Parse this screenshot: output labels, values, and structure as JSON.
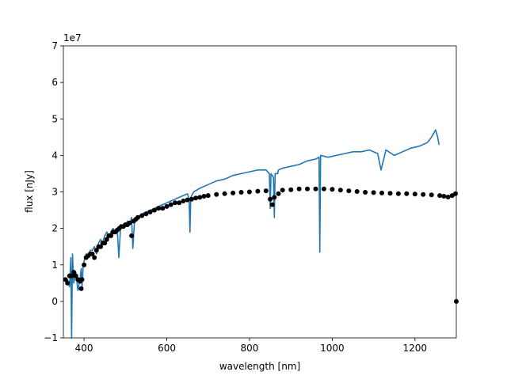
{
  "chart_data": {
    "type": "line",
    "title": "",
    "xlabel": "wavelength [nm]",
    "ylabel": "flux [nJy]",
    "y_offset_label": "1e7",
    "xlim": [
      350,
      1300
    ],
    "ylim": [
      -1,
      7
    ],
    "y_unit_multiplier": 10000000,
    "grid": false,
    "legend": "none",
    "x_ticks": [
      400,
      600,
      800,
      1000,
      1200
    ],
    "x_tick_labels": [
      "400",
      "600",
      "800",
      "1000",
      "1200"
    ],
    "y_ticks": [
      -1,
      0,
      1,
      2,
      3,
      4,
      5,
      6,
      7
    ],
    "y_tick_labels": [
      "−1",
      "0",
      "1",
      "2",
      "3",
      "4",
      "5",
      "6",
      "7"
    ],
    "series": [
      {
        "style": "line",
        "color": "#1f77b4",
        "points": [
          [
            360,
            0.6
          ],
          [
            365,
            0.4
          ],
          [
            368,
            1.2
          ],
          [
            370,
            -1.0
          ],
          [
            372,
            1.3
          ],
          [
            375,
            0.5
          ],
          [
            380,
            0.8
          ],
          [
            385,
            0.3
          ],
          [
            390,
            0.6
          ],
          [
            393,
            0.9
          ],
          [
            395,
            0.4
          ],
          [
            398,
            1.0
          ],
          [
            400,
            1.1
          ],
          [
            405,
            1.3
          ],
          [
            410,
            1.2
          ],
          [
            415,
            1.4
          ],
          [
            420,
            1.4
          ],
          [
            425,
            1.5
          ],
          [
            430,
            1.3
          ],
          [
            435,
            1.6
          ],
          [
            440,
            1.7
          ],
          [
            445,
            1.6
          ],
          [
            450,
            1.8
          ],
          [
            455,
            1.9
          ],
          [
            460,
            1.8
          ],
          [
            465,
            1.9
          ],
          [
            470,
            2.0
          ],
          [
            475,
            1.9
          ],
          [
            480,
            2.0
          ],
          [
            484,
            1.2
          ],
          [
            488,
            2.0
          ],
          [
            495,
            2.1
          ],
          [
            500,
            2.1
          ],
          [
            505,
            2.2
          ],
          [
            510,
            2.1
          ],
          [
            515,
            2.3
          ],
          [
            518,
            1.45
          ],
          [
            522,
            2.2
          ],
          [
            530,
            2.3
          ],
          [
            540,
            2.4
          ],
          [
            550,
            2.45
          ],
          [
            560,
            2.5
          ],
          [
            570,
            2.55
          ],
          [
            580,
            2.6
          ],
          [
            590,
            2.65
          ],
          [
            600,
            2.7
          ],
          [
            610,
            2.75
          ],
          [
            620,
            2.8
          ],
          [
            630,
            2.85
          ],
          [
            640,
            2.9
          ],
          [
            650,
            2.95
          ],
          [
            654,
            2.8
          ],
          [
            656,
            1.9
          ],
          [
            658,
            2.85
          ],
          [
            665,
            3.0
          ],
          [
            680,
            3.1
          ],
          [
            700,
            3.2
          ],
          [
            720,
            3.3
          ],
          [
            740,
            3.35
          ],
          [
            760,
            3.45
          ],
          [
            780,
            3.5
          ],
          [
            800,
            3.55
          ],
          [
            820,
            3.6
          ],
          [
            840,
            3.6
          ],
          [
            848,
            3.5
          ],
          [
            850,
            2.55
          ],
          [
            852,
            3.5
          ],
          [
            858,
            3.4
          ],
          [
            860,
            2.3
          ],
          [
            862,
            3.5
          ],
          [
            868,
            3.5
          ],
          [
            870,
            3.6
          ],
          [
            880,
            3.65
          ],
          [
            900,
            3.7
          ],
          [
            920,
            3.75
          ],
          [
            940,
            3.85
          ],
          [
            960,
            3.9
          ],
          [
            968,
            3.95
          ],
          [
            970,
            1.35
          ],
          [
            972,
            4.0
          ],
          [
            990,
            3.95
          ],
          [
            1010,
            4.0
          ],
          [
            1030,
            4.05
          ],
          [
            1050,
            4.1
          ],
          [
            1070,
            4.1
          ],
          [
            1090,
            4.15
          ],
          [
            1110,
            4.05
          ],
          [
            1118,
            3.6
          ],
          [
            1130,
            4.15
          ],
          [
            1150,
            4.0
          ],
          [
            1170,
            4.1
          ],
          [
            1190,
            4.2
          ],
          [
            1210,
            4.25
          ],
          [
            1230,
            4.35
          ],
          [
            1240,
            4.5
          ],
          [
            1250,
            4.7
          ],
          [
            1255,
            4.5
          ],
          [
            1258,
            4.3
          ]
        ]
      },
      {
        "style": "markers",
        "color": "#000000",
        "points": [
          [
            355,
            0.6
          ],
          [
            360,
            0.5
          ],
          [
            365,
            0.7
          ],
          [
            370,
            0.7
          ],
          [
            375,
            0.8
          ],
          [
            380,
            0.7
          ],
          [
            385,
            0.6
          ],
          [
            390,
            0.55
          ],
          [
            393,
            0.35
          ],
          [
            395,
            0.6
          ],
          [
            400,
            1.0
          ],
          [
            405,
            1.2
          ],
          [
            410,
            1.25
          ],
          [
            415,
            1.3
          ],
          [
            420,
            1.3
          ],
          [
            425,
            1.2
          ],
          [
            430,
            1.4
          ],
          [
            435,
            1.5
          ],
          [
            440,
            1.5
          ],
          [
            445,
            1.6
          ],
          [
            450,
            1.6
          ],
          [
            455,
            1.7
          ],
          [
            460,
            1.8
          ],
          [
            465,
            1.8
          ],
          [
            470,
            1.9
          ],
          [
            475,
            1.9
          ],
          [
            480,
            1.95
          ],
          [
            485,
            2.0
          ],
          [
            490,
            2.05
          ],
          [
            495,
            2.05
          ],
          [
            500,
            2.1
          ],
          [
            505,
            2.1
          ],
          [
            510,
            2.15
          ],
          [
            515,
            1.8
          ],
          [
            520,
            2.2
          ],
          [
            525,
            2.25
          ],
          [
            530,
            2.3
          ],
          [
            540,
            2.35
          ],
          [
            550,
            2.4
          ],
          [
            560,
            2.45
          ],
          [
            570,
            2.5
          ],
          [
            580,
            2.55
          ],
          [
            590,
            2.55
          ],
          [
            600,
            2.6
          ],
          [
            610,
            2.65
          ],
          [
            620,
            2.7
          ],
          [
            630,
            2.7
          ],
          [
            640,
            2.75
          ],
          [
            650,
            2.78
          ],
          [
            660,
            2.8
          ],
          [
            670,
            2.83
          ],
          [
            680,
            2.85
          ],
          [
            690,
            2.88
          ],
          [
            700,
            2.9
          ],
          [
            720,
            2.93
          ],
          [
            740,
            2.95
          ],
          [
            760,
            2.97
          ],
          [
            780,
            2.99
          ],
          [
            800,
            3.0
          ],
          [
            820,
            3.02
          ],
          [
            840,
            3.03
          ],
          [
            850,
            2.8
          ],
          [
            855,
            2.65
          ],
          [
            860,
            2.85
          ],
          [
            870,
            2.95
          ],
          [
            880,
            3.05
          ],
          [
            900,
            3.06
          ],
          [
            920,
            3.08
          ],
          [
            940,
            3.08
          ],
          [
            960,
            3.08
          ],
          [
            980,
            3.08
          ],
          [
            1000,
            3.07
          ],
          [
            1020,
            3.05
          ],
          [
            1040,
            3.03
          ],
          [
            1060,
            3.01
          ],
          [
            1080,
            2.99
          ],
          [
            1100,
            2.98
          ],
          [
            1120,
            2.97
          ],
          [
            1140,
            2.96
          ],
          [
            1160,
            2.95
          ],
          [
            1180,
            2.95
          ],
          [
            1200,
            2.94
          ],
          [
            1220,
            2.93
          ],
          [
            1240,
            2.92
          ],
          [
            1260,
            2.9
          ],
          [
            1270,
            2.88
          ],
          [
            1280,
            2.86
          ],
          [
            1290,
            2.9
          ],
          [
            1298,
            2.95
          ],
          [
            1300,
            0.0
          ]
        ]
      }
    ]
  }
}
